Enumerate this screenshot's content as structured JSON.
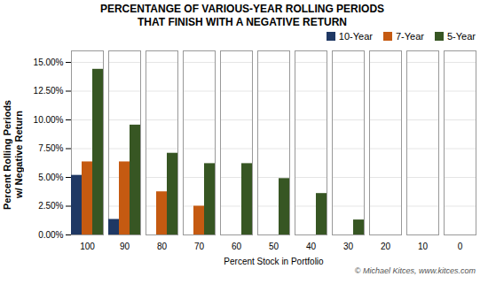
{
  "chart_data": {
    "type": "bar",
    "title": "PERCENTANGE OF VARIOUS-YEAR ROLLING PERIODS\nTHAT FINISH WITH A NEGATIVE RETURN",
    "x_label": "Percent Stock in Portfolio",
    "y_label": "Percent Rolling Periods\nw/ Negative Return",
    "categories": [
      "100",
      "90",
      "80",
      "70",
      "60",
      "50",
      "40",
      "30",
      "20",
      "10",
      "0"
    ],
    "series": [
      {
        "name": "10-Year",
        "color": "#1f3864",
        "values": [
          0.0518,
          0.0135,
          0.0,
          0.0,
          0.0,
          0.0,
          0.0,
          0.0,
          0.0,
          0.0,
          0.0
        ]
      },
      {
        "name": "7-Year",
        "color": "#c55a11",
        "values": [
          0.0635,
          0.0635,
          0.0375,
          0.025,
          0.0,
          0.0,
          0.0,
          0.0,
          0.0,
          0.0,
          0.0
        ]
      },
      {
        "name": "5-Year",
        "color": "#375623",
        "values": [
          0.144,
          0.0955,
          0.071,
          0.062,
          0.062,
          0.049,
          0.036,
          0.013,
          0.0,
          0.0,
          0.0
        ]
      }
    ],
    "ylim": [
      0,
      0.16
    ],
    "yticks": [
      {
        "value": 0.0,
        "label": "0.00%"
      },
      {
        "value": 0.025,
        "label": "2.50%"
      },
      {
        "value": 0.05,
        "label": "5.00%"
      },
      {
        "value": 0.075,
        "label": "7.50%"
      },
      {
        "value": 0.1,
        "label": "10.00%"
      },
      {
        "value": 0.125,
        "label": "12.50%"
      },
      {
        "value": 0.15,
        "label": "15.00%"
      }
    ],
    "grid": true,
    "legend": "upper right",
    "annotations": [
      "© Michael Kitces, www.kitces.com"
    ]
  }
}
